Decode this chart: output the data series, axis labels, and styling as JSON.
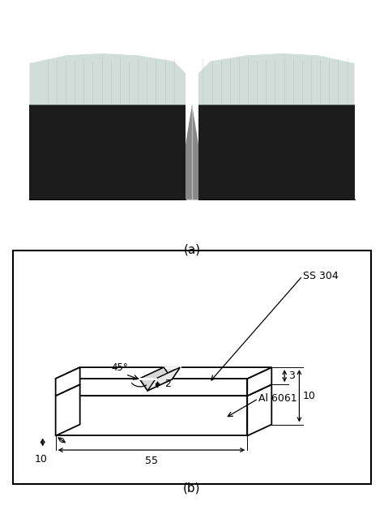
{
  "photo_label": "(a)",
  "diagram_label": "(b)",
  "ss304_label": "SS 304",
  "al6061_label": "Al 6061",
  "angle_label": "45°",
  "dim_2": "2",
  "dim_3": "3",
  "dim_10_right": "10",
  "dim_10_bottom": "10",
  "dim_55": "55",
  "bg_color": "#ffffff",
  "photo_bg": "#8B1010",
  "steel_dark": "#1a1a1a",
  "steel_light": "#b0c0b8",
  "steel_fracture": "#d0ddd8"
}
